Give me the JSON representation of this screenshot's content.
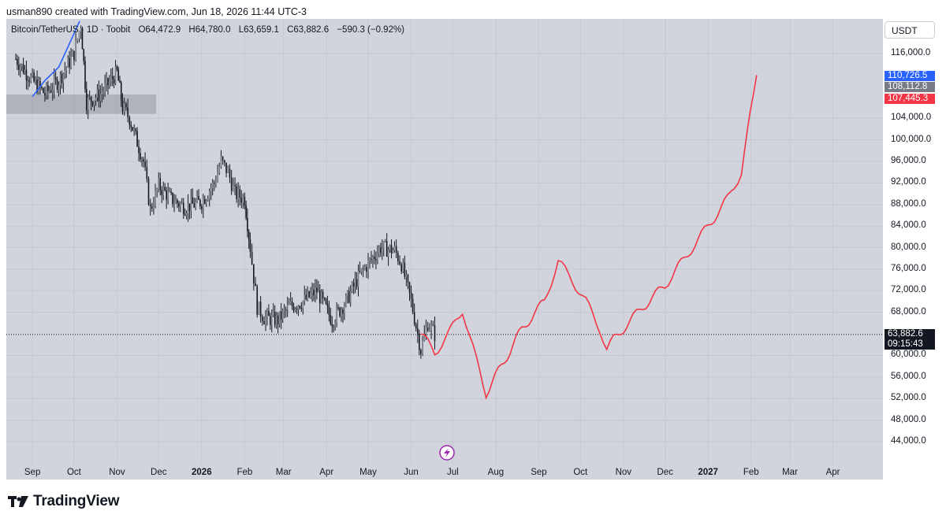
{
  "header": {
    "credit": "usman890 created with TradingView.com, Jun 18, 2026 11:44 UTC-3"
  },
  "symbol": {
    "name": "Bitcoin/TetherUS · 1D · Toobit",
    "open": "O64,472.9",
    "high": "H64,780.0",
    "low": "L63,659.1",
    "close": "C63,882.6",
    "change": "−590.3 (−0.92%)"
  },
  "currency_button": "USDT",
  "price_labels": {
    "blue": {
      "text": "110,726.5",
      "color": "#2962ff"
    },
    "gray": {
      "text": "108,112.8",
      "color": "#787b86"
    },
    "red": {
      "text": "107,445.3",
      "color": "#f23645"
    },
    "last": {
      "text": "63,882.6",
      "color": "#131722"
    },
    "countdown": {
      "text": "09:15:43",
      "color": "#131722"
    }
  },
  "footer": {
    "brand": "TradingView"
  },
  "chart_data": {
    "type": "line",
    "x_axis_ticks": [
      "Sep",
      "Oct",
      "Nov",
      "Dec",
      "2026",
      "Feb",
      "Mar",
      "Apr",
      "May",
      "Jun",
      "Jul",
      "Aug",
      "Sep",
      "Oct",
      "Nov",
      "Dec",
      "2027",
      "Feb",
      "Mar",
      "Apr"
    ],
    "y_axis_ticks": [
      "116,000.0",
      "104,000.0",
      "100,000.0",
      "96,000.0",
      "92,000.0",
      "88,000.0",
      "84,000.0",
      "80,000.0",
      "76,000.0",
      "72,000.0",
      "68,000.0",
      "60,000.0",
      "56,000.0",
      "52,000.0",
      "48,000.0",
      "44,000.0"
    ],
    "y_tick_values": [
      116000,
      104000,
      100000,
      96000,
      92000,
      88000,
      84000,
      80000,
      76000,
      72000,
      68000,
      60000,
      56000,
      52000,
      48000,
      44000
    ],
    "ylim": [
      42000,
      122000
    ],
    "grid": true,
    "last_price": 63882.6,
    "zone": {
      "y_range": [
        104800,
        108400
      ]
    },
    "series": [
      {
        "name": "",
        "style": "candles",
        "color": "#131722",
        "x": [
          "2025-08-20",
          "2025-09-01",
          "2025-09-10",
          "2025-09-20",
          "2025-10-01",
          "2025-10-06",
          "2025-10-10",
          "2025-10-20",
          "2025-11-01",
          "2025-11-05",
          "2025-11-10",
          "2025-11-20",
          "2025-11-25",
          "2025-12-01",
          "2025-12-10",
          "2025-12-20",
          "2026-01-01",
          "2026-01-10",
          "2026-01-15",
          "2026-01-20",
          "2026-01-25",
          "2026-02-01",
          "2026-02-05",
          "2026-02-10",
          "2026-02-15",
          "2026-02-25",
          "2026-03-05",
          "2026-03-15",
          "2026-03-25",
          "2026-04-05",
          "2026-04-15",
          "2026-04-25",
          "2026-05-01",
          "2026-05-10",
          "2026-05-20",
          "2026-05-25",
          "2026-06-01",
          "2026-06-08",
          "2026-06-13",
          "2026-06-18"
        ],
        "y": [
          115000,
          111000,
          108500,
          111000,
          116000,
          121500,
          107000,
          108500,
          112500,
          106000,
          104000,
          96000,
          87000,
          91500,
          89000,
          87500,
          88500,
          92000,
          96000,
          94000,
          90000,
          89000,
          80000,
          69000,
          67000,
          66500,
          69000,
          70000,
          72000,
          66500,
          70000,
          75000,
          77000,
          80000,
          79500,
          77000,
          70000,
          61000,
          66000,
          63882.6
        ]
      },
      {
        "name": "",
        "style": "line",
        "color": "#2962ff",
        "x": [
          "2025-09-01",
          "2025-09-10",
          "2025-09-20",
          "2025-09-28",
          "2025-10-05"
        ],
        "y": [
          108000,
          111000,
          113500,
          118000,
          122000
        ]
      },
      {
        "name": "",
        "style": "line",
        "color": "#f23645",
        "x": [
          "2026-06-08",
          "2026-06-18",
          "2026-06-28",
          "2026-07-08",
          "2026-07-18",
          "2026-07-25",
          "2026-08-05",
          "2026-08-20",
          "2026-09-05",
          "2026-09-15",
          "2026-09-25",
          "2026-10-05",
          "2026-10-15",
          "2026-10-20",
          "2026-10-25",
          "2026-11-01",
          "2026-11-15",
          "2026-12-01",
          "2026-12-15",
          "2027-01-01",
          "2027-01-15",
          "2027-01-25",
          "2027-02-05"
        ],
        "y": [
          64000,
          60500,
          64000,
          68500,
          59000,
          53000,
          58000,
          65000,
          70000,
          77500,
          74000,
          70000,
          65000,
          61000,
          63000,
          65000,
          69000,
          73000,
          78000,
          84000,
          89000,
          94000,
          112000
        ]
      }
    ]
  }
}
